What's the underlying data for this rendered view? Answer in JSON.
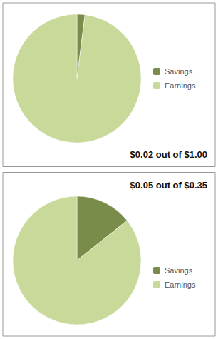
{
  "chart_data": [
    {
      "type": "pie",
      "title": "$0.02 out of $1.00",
      "categories": [
        "Savings",
        "Earnings"
      ],
      "values": [
        0.02,
        0.98
      ],
      "colors": [
        "#7a8c4a",
        "#c8d99a"
      ],
      "legend": "right"
    },
    {
      "type": "pie",
      "title": "$0.05 out of $0.35",
      "categories": [
        "Savings",
        "Earnings"
      ],
      "values": [
        0.05,
        0.3
      ],
      "colors": [
        "#7a8c4a",
        "#c8d99a"
      ],
      "legend": "right"
    }
  ]
}
